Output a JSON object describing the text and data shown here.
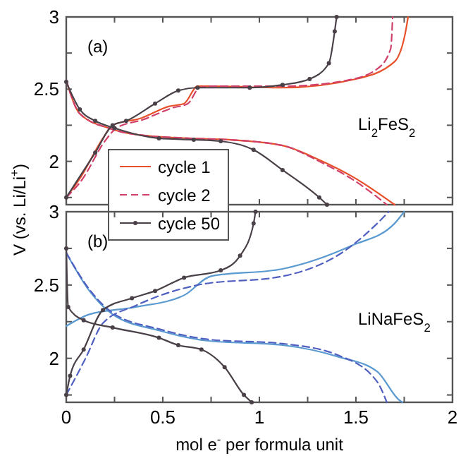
{
  "chart_data": [
    {
      "type": "line",
      "ylabel": "V (vs. Li/Li$^{+}$)",
      "annotations": [
        "(a)",
        "Li$_{2}$FeS$_{2}$"
      ],
      "xlim": [
        0,
        2
      ],
      "xticks": [
        0,
        {
          "value": 0.25,
          "label": null
        },
        0.5,
        {
          "value": 0.75,
          "label": null
        },
        1,
        {
          "value": 1.25,
          "label": null
        },
        1.5,
        {
          "value": 1.75,
          "label": null
        },
        2
      ],
      "ylim": [
        1.7,
        3
      ],
      "yticks": [
        {
          "value": 1.75,
          "label": null
        },
        2,
        {
          "value": 2.25,
          "label": null
        },
        2.5,
        {
          "value": 2.75,
          "label": null
        },
        3
      ],
      "tick_labels": "y",
      "legend": "bottom left",
      "series": [
        {
          "name": "cycle 1",
          "color": "#e8502a",
          "line_style": "solid",
          "marker": "none",
          "x": [
            0,
            0.07,
            0.22,
            0.34,
            0.63,
            0.84,
            1.12,
            1.31,
            1.5,
            1.7
          ],
          "values": [
            2.56,
            2.33,
            2.23,
            2.19,
            2.16,
            2.15,
            2.11,
            2.01,
            1.88,
            1.7
          ]
        },
        {
          "color": "#e8502a",
          "line_style": "solid",
          "marker": "none",
          "x": [
            0,
            0.07,
            0.19,
            0.24,
            0.39,
            0.53,
            0.61,
            0.68,
            0.75,
            1.12,
            1.5,
            1.7,
            1.76,
            1.77
          ],
          "values": [
            1.75,
            1.88,
            2.16,
            2.25,
            2.3,
            2.38,
            2.4,
            2.52,
            2.52,
            2.51,
            2.57,
            2.69,
            2.92,
            3.0
          ]
        },
        {
          "name": "cycle 2",
          "color": "#d04068",
          "line_style": "dashed",
          "marker": "none",
          "x": [
            0,
            0.07,
            0.22,
            0.34,
            0.63,
            0.84,
            1.12,
            1.31,
            1.5,
            1.66
          ],
          "values": [
            2.56,
            2.33,
            2.23,
            2.19,
            2.16,
            2.15,
            2.11,
            2.0,
            1.86,
            1.7
          ]
        },
        {
          "color": "#d04068",
          "line_style": "dashed",
          "marker": "none",
          "x": [
            0,
            0.08,
            0.2,
            0.26,
            0.4,
            0.55,
            0.63,
            0.69,
            0.76,
            1.12,
            1.45,
            1.61,
            1.68,
            1.69
          ],
          "values": [
            1.75,
            1.87,
            2.14,
            2.23,
            2.29,
            2.37,
            2.4,
            2.51,
            2.52,
            2.52,
            2.56,
            2.64,
            2.78,
            3.0
          ]
        },
        {
          "name": "cycle 50",
          "color": "#4a4048",
          "line_style": "solid",
          "marker": "circle",
          "x": [
            0,
            0.07,
            0.15,
            0.25,
            0.48,
            0.66,
            0.8,
            0.97,
            1.12,
            1.31,
            1.35
          ],
          "values": [
            2.55,
            2.36,
            2.28,
            2.23,
            2.16,
            2.15,
            2.14,
            2.08,
            1.94,
            1.75,
            1.7
          ]
        },
        {
          "color": "#4a4048",
          "line_style": "solid",
          "marker": "circle",
          "x": [
            0,
            0.15,
            0.24,
            0.31,
            0.46,
            0.58,
            0.68,
            0.95,
            1.12,
            1.26,
            1.36,
            1.39,
            1.4
          ],
          "values": [
            1.75,
            2.06,
            2.25,
            2.28,
            2.4,
            2.49,
            2.51,
            2.51,
            2.53,
            2.57,
            2.68,
            2.9,
            3.0
          ]
        }
      ]
    },
    {
      "type": "line",
      "xlabel": "mol e$^{-}$ per formula unit",
      "annotations": [
        "(b)",
        "LiNaFeS$_{2}$"
      ],
      "xlim": [
        0,
        2
      ],
      "xticks": [
        0,
        {
          "value": 0.25,
          "label": null
        },
        0.5,
        {
          "value": 0.75,
          "label": null
        },
        1,
        {
          "value": 1.25,
          "label": null
        },
        1.5,
        {
          "value": 1.75,
          "label": null
        },
        2
      ],
      "ylim": [
        1.7,
        3
      ],
      "yticks": [
        {
          "value": 1.75,
          "label": null
        },
        2,
        {
          "value": 2.25,
          "label": null
        },
        2.5,
        {
          "value": 2.75,
          "label": null
        },
        3
      ],
      "series": [
        {
          "color": "#5a9ad0",
          "line_style": "solid",
          "marker": "none",
          "x": [
            0,
            0.12,
            0.24,
            0.48,
            0.73,
            1.12,
            1.41,
            1.61,
            1.72,
            1.74
          ],
          "values": [
            2.72,
            2.46,
            2.3,
            2.19,
            2.12,
            2.09,
            2.01,
            1.91,
            1.72,
            1.7
          ]
        },
        {
          "color": "#5a9ad0",
          "line_style": "solid",
          "marker": "none",
          "x": [
            0,
            0.12,
            0.36,
            0.61,
            0.75,
            1.12,
            1.48,
            1.7,
            1.75
          ],
          "values": [
            2.22,
            2.3,
            2.35,
            2.43,
            2.56,
            2.61,
            2.77,
            2.92,
            3.0
          ]
        },
        {
          "color": "#5060c0",
          "line_style": "dashed",
          "marker": "none",
          "x": [
            0,
            0.12,
            0.24,
            0.48,
            0.73,
            1.12,
            1.41,
            1.61,
            1.66
          ],
          "values": [
            2.72,
            2.47,
            2.31,
            2.2,
            2.13,
            2.1,
            2.02,
            1.84,
            1.7
          ]
        },
        {
          "color": "#5060c0",
          "line_style": "dashed",
          "marker": "none",
          "x": [
            0,
            0.1,
            0.19,
            0.36,
            0.68,
            1.12,
            1.46,
            1.61,
            1.67
          ],
          "values": [
            1.75,
            2.0,
            2.24,
            2.36,
            2.5,
            2.56,
            2.75,
            2.92,
            3.0
          ]
        },
        {
          "color": "#4a4048",
          "line_style": "solid",
          "marker": "circle",
          "x": [
            0,
            0.01,
            0.09,
            0.24,
            0.48,
            0.58,
            0.7,
            0.82,
            0.92,
            0.96
          ],
          "values": [
            2.75,
            2.35,
            2.26,
            2.21,
            2.14,
            2.09,
            2.06,
            1.94,
            1.75,
            1.7
          ]
        },
        {
          "color": "#4a4048",
          "line_style": "solid",
          "marker": "circle",
          "x": [
            0,
            0.02,
            0.09,
            0.19,
            0.34,
            0.46,
            0.61,
            0.8,
            0.9,
            0.97,
            0.98
          ],
          "values": [
            1.75,
            1.88,
            2.06,
            2.33,
            2.41,
            2.46,
            2.55,
            2.6,
            2.7,
            2.92,
            3.0
          ]
        }
      ]
    }
  ]
}
